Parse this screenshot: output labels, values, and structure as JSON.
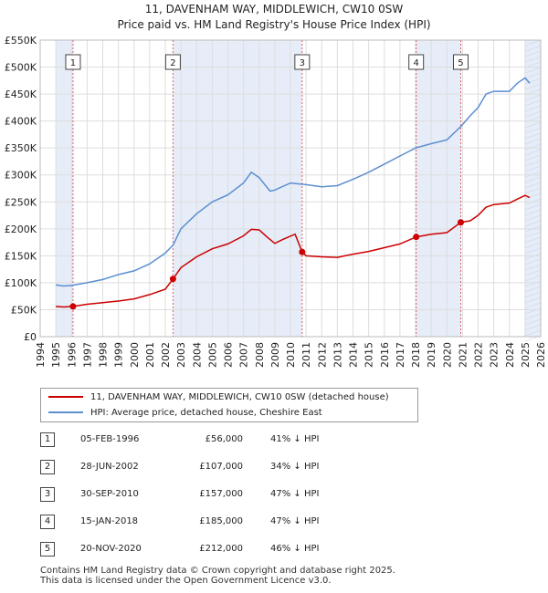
{
  "title_line1": "11, DAVENHAM WAY, MIDDLEWICH, CW10 0SW",
  "title_line2": "Price paid vs. HM Land Registry's House Price Index (HPI)",
  "legend": {
    "series1": "11, DAVENHAM WAY, MIDDLEWICH, CW10 0SW (detached house)",
    "series2": "HPI: Average price, detached house, Cheshire East"
  },
  "colors": {
    "price": "#cc0000",
    "hpi": "#5b8fd0",
    "band": "#e6edf8",
    "marker_line": "#e06060"
  },
  "sales": [
    {
      "num": "1",
      "date": "05-FEB-1996",
      "price": "£56,000",
      "hpi": "41% ↓ HPI"
    },
    {
      "num": "2",
      "date": "28-JUN-2002",
      "price": "£107,000",
      "hpi": "34% ↓ HPI"
    },
    {
      "num": "3",
      "date": "30-SEP-2010",
      "price": "£157,000",
      "hpi": "47% ↓ HPI"
    },
    {
      "num": "4",
      "date": "15-JAN-2018",
      "price": "£185,000",
      "hpi": "47% ↓ HPI"
    },
    {
      "num": "5",
      "date": "20-NOV-2020",
      "price": "£212,000",
      "hpi": "46% ↓ HPI"
    }
  ],
  "footer_line1": "Contains HM Land Registry data © Crown copyright and database right 2025.",
  "footer_line2": "This data is licensed under the Open Government Licence v3.0.",
  "chart_data": {
    "type": "line",
    "title": "11, DAVENHAM WAY, MIDDLEWICH, CW10 0SW",
    "subtitle": "Price paid vs. HM Land Registry's House Price Index (HPI)",
    "xlim": [
      1994,
      2026
    ],
    "ylim": [
      0,
      550000
    ],
    "yticks": [
      0,
      50000,
      100000,
      150000,
      200000,
      250000,
      300000,
      350000,
      400000,
      450000,
      500000,
      550000
    ],
    "yticklabels": [
      "£0",
      "£50K",
      "£100K",
      "£150K",
      "£200K",
      "£250K",
      "£300K",
      "£350K",
      "£400K",
      "£450K",
      "£500K",
      "£550K"
    ],
    "xticks": [
      1994,
      1995,
      1996,
      1997,
      1998,
      1999,
      2000,
      2001,
      2002,
      2003,
      2004,
      2005,
      2006,
      2007,
      2008,
      2009,
      2010,
      2011,
      2012,
      2013,
      2014,
      2015,
      2016,
      2017,
      2018,
      2019,
      2020,
      2021,
      2022,
      2023,
      2024,
      2025,
      2026
    ],
    "xticklabels": [
      "1994",
      "1995",
      "1996",
      "1997",
      "1998",
      "1999",
      "2000",
      "2001",
      "2002",
      "2003",
      "2004",
      "2005",
      "2006",
      "2007",
      "2008",
      "2009",
      "2010",
      "2011",
      "2012",
      "2013",
      "2014",
      "2015",
      "2016",
      "2017",
      "2018",
      "2019",
      "2020",
      "2021",
      "2022",
      "2023",
      "2024",
      "2025",
      "2026"
    ],
    "shaded_ranges": [
      [
        1995.0,
        1996.1
      ],
      [
        2002.5,
        2010.75
      ],
      [
        2018.05,
        2020.9
      ],
      [
        2025.0,
        2026.0
      ]
    ],
    "sale_markers": [
      {
        "label": "1",
        "x": 1996.1,
        "y": 56000
      },
      {
        "label": "2",
        "x": 2002.49,
        "y": 107000
      },
      {
        "label": "3",
        "x": 2010.75,
        "y": 157000
      },
      {
        "label": "4",
        "x": 2018.04,
        "y": 185000
      },
      {
        "label": "5",
        "x": 2020.89,
        "y": 212000
      }
    ],
    "series": [
      {
        "name": "11, DAVENHAM WAY, MIDDLEWICH, CW10 0SW (detached house)",
        "color": "#cc0000",
        "points": [
          [
            1995.0,
            56000
          ],
          [
            1995.5,
            55000
          ],
          [
            1996.1,
            56000
          ],
          [
            1997,
            60000
          ],
          [
            1998,
            63000
          ],
          [
            1999,
            66000
          ],
          [
            2000,
            70000
          ],
          [
            2001,
            78000
          ],
          [
            2002,
            88000
          ],
          [
            2002.49,
            107000
          ],
          [
            2003,
            128000
          ],
          [
            2004,
            148000
          ],
          [
            2005,
            163000
          ],
          [
            2006,
            172000
          ],
          [
            2007,
            187000
          ],
          [
            2007.5,
            199000
          ],
          [
            2008,
            198000
          ],
          [
            2008.5,
            185000
          ],
          [
            2009,
            173000
          ],
          [
            2009.5,
            180000
          ],
          [
            2010.3,
            190000
          ],
          [
            2010.75,
            157000
          ],
          [
            2011,
            150000
          ],
          [
            2012,
            148000
          ],
          [
            2013,
            147000
          ],
          [
            2014,
            153000
          ],
          [
            2015,
            158000
          ],
          [
            2016,
            165000
          ],
          [
            2017,
            172000
          ],
          [
            2018.04,
            185000
          ],
          [
            2019,
            190000
          ],
          [
            2020,
            193000
          ],
          [
            2020.89,
            212000
          ],
          [
            2021.5,
            215000
          ],
          [
            2022,
            225000
          ],
          [
            2022.5,
            240000
          ],
          [
            2023,
            245000
          ],
          [
            2024,
            248000
          ],
          [
            2024.5,
            255000
          ],
          [
            2025,
            262000
          ],
          [
            2025.3,
            258000
          ]
        ]
      },
      {
        "name": "HPI: Average price, detached house, Cheshire East",
        "color": "#5b8fd0",
        "points": [
          [
            1995.0,
            96000
          ],
          [
            1995.5,
            94000
          ],
          [
            1996,
            95000
          ],
          [
            1997,
            100000
          ],
          [
            1998,
            106000
          ],
          [
            1999,
            115000
          ],
          [
            2000,
            122000
          ],
          [
            2001,
            135000
          ],
          [
            2002,
            155000
          ],
          [
            2002.5,
            170000
          ],
          [
            2003,
            200000
          ],
          [
            2004,
            228000
          ],
          [
            2005,
            250000
          ],
          [
            2006,
            263000
          ],
          [
            2007,
            285000
          ],
          [
            2007.5,
            305000
          ],
          [
            2008,
            295000
          ],
          [
            2008.7,
            270000
          ],
          [
            2009,
            272000
          ],
          [
            2010,
            285000
          ],
          [
            2011,
            282000
          ],
          [
            2012,
            278000
          ],
          [
            2013,
            280000
          ],
          [
            2014,
            292000
          ],
          [
            2015,
            305000
          ],
          [
            2016,
            320000
          ],
          [
            2017,
            335000
          ],
          [
            2018,
            350000
          ],
          [
            2019,
            358000
          ],
          [
            2020,
            365000
          ],
          [
            2020.9,
            390000
          ],
          [
            2021.5,
            410000
          ],
          [
            2022,
            425000
          ],
          [
            2022.5,
            450000
          ],
          [
            2023,
            455000
          ],
          [
            2024,
            455000
          ],
          [
            2024.5,
            470000
          ],
          [
            2025,
            480000
          ],
          [
            2025.3,
            470000
          ]
        ]
      }
    ]
  }
}
